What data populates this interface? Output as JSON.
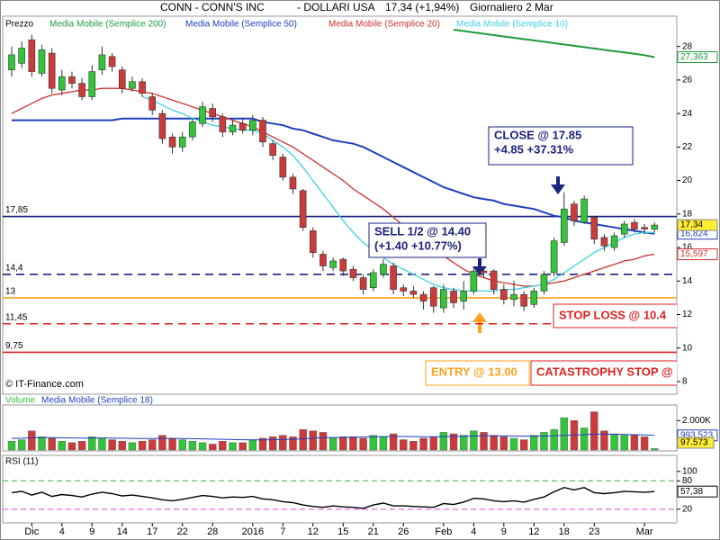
{
  "chart_data": [
    {
      "type": "candlestick",
      "name": "Prezzo",
      "title": "CONN - CONN'S INC",
      "currency": "- DOLLARI USA",
      "last_quote": "17,34 (+1,94%)",
      "period": "Giornaliero  2 Mar",
      "credit": "© IT-Finance.com",
      "categories": [
        null,
        null,
        "Dic",
        null,
        null,
        "4",
        null,
        null,
        "9",
        null,
        null,
        "14",
        null,
        null,
        "17",
        null,
        null,
        "22",
        null,
        null,
        "28",
        null,
        null,
        null,
        "2016",
        null,
        null,
        "7",
        null,
        null,
        "12",
        null,
        null,
        "15",
        null,
        null,
        "21",
        null,
        null,
        "26",
        null,
        null,
        null,
        "Feb",
        null,
        null,
        "4",
        null,
        null,
        "9",
        null,
        null,
        "12",
        null,
        null,
        "18",
        null,
        null,
        "23",
        null,
        null,
        null,
        null,
        "Mar",
        null
      ],
      "open": [
        26.6,
        27.0,
        28.4,
        26.4,
        27.6,
        25.4,
        26.2,
        25.8,
        25.0,
        26.6,
        27.4,
        26.6,
        25.5,
        25.9,
        25.0,
        24.0,
        22.6,
        22.0,
        22.6,
        23.4,
        24.3,
        23.8,
        22.9,
        23.4,
        23.0,
        23.6,
        22.2,
        21.4,
        20.2,
        19.4,
        17.0,
        15.6,
        14.8,
        15.3,
        14.7,
        14.2,
        13.6,
        14.4,
        14.9,
        13.6,
        13.4,
        13.2,
        13.6,
        12.4,
        13.4,
        12.8,
        13.4,
        14.6,
        14.6,
        13.5,
        12.9,
        13.2,
        12.6,
        13.4,
        14.5,
        16.3,
        18.6,
        17.5,
        17.8,
        16.6,
        16.0,
        16.8,
        17.5,
        17.2,
        17.1
      ],
      "high": [
        28.0,
        28.3,
        28.7,
        28.1,
        27.9,
        26.6,
        26.5,
        26.1,
        26.9,
        28.0,
        27.6,
        26.8,
        26.2,
        26.1,
        25.2,
        24.2,
        22.8,
        22.9,
        23.7,
        24.7,
        24.6,
        24.0,
        23.6,
        23.7,
        23.9,
        23.8,
        22.4,
        21.6,
        20.4,
        19.5,
        17.2,
        15.8,
        15.4,
        15.4,
        14.9,
        14.4,
        14.7,
        15.3,
        15.1,
        13.8,
        13.7,
        13.4,
        13.7,
        13.8,
        13.6,
        14.0,
        14.8,
        14.9,
        14.7,
        13.8,
        14.0,
        13.4,
        13.6,
        14.6,
        16.6,
        19.3,
        18.8,
        19.1,
        17.9,
        16.8,
        16.9,
        17.6,
        17.7,
        17.4,
        17.5
      ],
      "low": [
        26.2,
        26.7,
        26.2,
        26.2,
        25.2,
        25.1,
        25.5,
        24.8,
        24.8,
        26.3,
        26.5,
        25.2,
        25.3,
        25.0,
        23.9,
        22.2,
        21.6,
        21.7,
        22.4,
        23.2,
        23.5,
        22.6,
        22.7,
        22.8,
        22.7,
        22.0,
        21.2,
        20.0,
        19.2,
        17.0,
        15.4,
        14.6,
        14.6,
        14.3,
        14.0,
        13.2,
        13.4,
        14.2,
        13.2,
        13.1,
        13.0,
        12.3,
        12.1,
        12.1,
        12.4,
        12.3,
        13.2,
        14.2,
        13.2,
        12.6,
        12.5,
        12.2,
        12.4,
        13.2,
        14.3,
        16.1,
        17.3,
        17.4,
        16.2,
        15.8,
        15.8,
        16.6,
        16.9,
        16.8,
        16.9
      ],
      "close": [
        27.5,
        27.9,
        26.5,
        27.8,
        25.5,
        26.2,
        25.8,
        25.0,
        26.5,
        27.5,
        26.8,
        25.5,
        25.9,
        25.2,
        24.2,
        22.5,
        22.0,
        22.6,
        23.5,
        24.4,
        23.8,
        22.9,
        23.3,
        23.0,
        23.6,
        22.3,
        21.5,
        20.2,
        19.5,
        17.2,
        15.7,
        14.9,
        15.2,
        14.6,
        14.2,
        13.5,
        14.5,
        15.0,
        13.5,
        13.4,
        13.2,
        12.8,
        12.5,
        13.5,
        12.7,
        13.4,
        14.6,
        14.5,
        13.5,
        12.9,
        13.2,
        12.5,
        13.4,
        14.4,
        16.4,
        18.3,
        17.6,
        18.9,
        16.5,
        16.1,
        16.7,
        17.4,
        17.1,
        17.1,
        17.34
      ],
      "close_label": "17,34",
      "up_color": "#33c43a",
      "down_color": "#cc3b3b",
      "series": [
        {
          "name": "Media Mobile (Semplice 200)",
          "color": "#1f9a3c",
          "last_label": "27,363",
          "values": [
            null,
            null,
            null,
            null,
            null,
            null,
            null,
            null,
            null,
            null,
            null,
            null,
            null,
            null,
            null,
            null,
            null,
            null,
            null,
            null,
            null,
            null,
            null,
            null,
            null,
            null,
            null,
            null,
            null,
            null,
            null,
            null,
            null,
            null,
            null,
            null,
            null,
            null,
            null,
            null,
            null,
            null,
            null,
            null,
            29.0,
            28.92,
            28.84,
            28.76,
            28.68,
            28.6,
            28.52,
            28.44,
            28.36,
            28.28,
            28.2,
            28.12,
            28.04,
            27.96,
            27.88,
            27.8,
            27.72,
            27.64,
            27.56,
            27.48,
            27.363
          ]
        },
        {
          "name": "Media Mobile (Semplice 50)",
          "color": "#1f3fbf",
          "last_label": "16,824",
          "values": [
            23.6,
            23.6,
            23.6,
            23.6,
            23.6,
            23.6,
            23.6,
            23.6,
            23.6,
            23.6,
            23.6,
            23.7,
            23.7,
            23.7,
            23.7,
            23.7,
            23.7,
            23.7,
            23.7,
            23.7,
            23.7,
            23.7,
            23.7,
            23.7,
            23.7,
            23.5,
            23.4,
            23.3,
            23.1,
            23.0,
            22.8,
            22.6,
            22.4,
            22.3,
            22.2,
            22.0,
            21.7,
            21.4,
            21.1,
            20.8,
            20.5,
            20.2,
            19.9,
            19.6,
            19.4,
            19.2,
            19.0,
            18.9,
            18.8,
            18.6,
            18.5,
            18.4,
            18.3,
            18.1,
            17.9,
            17.8,
            17.6,
            17.5,
            17.4,
            17.3,
            17.2,
            17.1,
            17.0,
            16.9,
            16.824
          ]
        },
        {
          "name": "Media Mobile (Semplice 20)",
          "color": "#d03030",
          "last_label": "15,597",
          "values": [
            24.0,
            24.3,
            24.6,
            24.9,
            25.1,
            25.2,
            25.3,
            25.4,
            25.4,
            25.5,
            25.5,
            25.5,
            25.4,
            25.3,
            25.2,
            25.0,
            24.8,
            24.6,
            24.4,
            24.2,
            24.0,
            23.8,
            23.6,
            23.4,
            23.2,
            22.9,
            22.6,
            22.3,
            22.0,
            21.6,
            21.2,
            20.8,
            20.4,
            20.0,
            19.5,
            19.1,
            18.7,
            18.3,
            17.8,
            17.3,
            16.8,
            16.3,
            15.9,
            15.5,
            15.1,
            14.7,
            14.4,
            14.2,
            14.0,
            13.9,
            13.8,
            13.7,
            13.7,
            13.8,
            13.9,
            14.0,
            14.2,
            14.4,
            14.6,
            14.8,
            15.0,
            15.2,
            15.3,
            15.5,
            15.597
          ]
        },
        {
          "name": "Media Mobile (Semplice 10)",
          "color": "#3fd0e0",
          "values": [
            null,
            null,
            null,
            null,
            null,
            null,
            null,
            null,
            null,
            null,
            null,
            null,
            null,
            25.0,
            24.8,
            24.5,
            24.2,
            24.0,
            23.7,
            23.5,
            23.3,
            23.2,
            23.1,
            23.0,
            23.0,
            22.8,
            22.4,
            22.0,
            21.5,
            20.8,
            20.0,
            19.2,
            18.4,
            17.6,
            16.9,
            16.3,
            15.8,
            15.4,
            15.0,
            14.7,
            14.4,
            14.1,
            13.8,
            13.6,
            13.5,
            13.4,
            13.4,
            13.4,
            13.4,
            13.5,
            13.5,
            13.6,
            13.7,
            13.8,
            14.1,
            14.5,
            14.9,
            15.3,
            15.7,
            16.0,
            16.3,
            16.6,
            16.8,
            16.9,
            16.9
          ]
        }
      ],
      "levels": [
        {
          "value": 17.85,
          "label": "17,85",
          "color": "#1a237e",
          "dash": false
        },
        {
          "value": 14.4,
          "label": "14,4",
          "color": "#1a237e",
          "dash": true
        },
        {
          "value": 13,
          "label": "13",
          "color": "#ffa21a",
          "dash": false
        },
        {
          "value": 11.45,
          "label": "11,45",
          "color": "#dd2222",
          "dash": true
        },
        {
          "value": 9.75,
          "label": "9,75",
          "color": "#dd2222",
          "dash": false
        }
      ],
      "annotations": [
        {
          "lines": [
            "CLOSE @ 17.85",
            "+4.85 +37.31%"
          ],
          "color": "#1a237e"
        },
        {
          "lines": [
            "SELL 1/2 @ 14.40",
            "(+1.40 +10.77%)"
          ],
          "color": "#1a237e"
        },
        {
          "lines": [
            "STOP LOSS @ 10.4"
          ],
          "color": "#dd2222"
        },
        {
          "lines": [
            "ENTRY @ 13.00"
          ],
          "color": "#ffa21a"
        },
        {
          "lines": [
            "CATASTROPHY STOP @"
          ],
          "color": "#dd2222"
        }
      ],
      "ylim": [
        7.3,
        29.7
      ],
      "yticks": [
        8,
        10,
        12,
        14,
        16,
        18,
        20,
        22,
        24,
        26,
        28
      ]
    },
    {
      "type": "bar",
      "series": [
        {
          "name": "Volume",
          "color": "#33c43a",
          "last_label": "97.573",
          "values": [
            600000,
            700000,
            1300000,
            900000,
            800000,
            600000,
            500000,
            600000,
            900000,
            800000,
            700000,
            600000,
            500000,
            600000,
            700000,
            1000000,
            800000,
            700000,
            600000,
            500000,
            400000,
            600000,
            500000,
            500000,
            700000,
            800000,
            900000,
            1000000,
            900000,
            1400000,
            1300000,
            1200000,
            800000,
            900000,
            900000,
            800000,
            1000000,
            900000,
            1100000,
            700000,
            600000,
            800000,
            900000,
            1200000,
            1100000,
            1000000,
            1300000,
            1200000,
            1000000,
            900000,
            800000,
            700000,
            1000000,
            1200000,
            1400000,
            2200000,
            2000000,
            1500000,
            2600000,
            1300000,
            1100000,
            1000000,
            1000000,
            900000,
            97573
          ]
        },
        {
          "name": "Media Mobile (Semplice 18)",
          "color": "#1f3fbf",
          "last_label": "993.523",
          "values": [
            790000,
            800000,
            830000,
            840000,
            840000,
            830000,
            820000,
            810000,
            820000,
            820000,
            810000,
            800000,
            790000,
            780000,
            780000,
            790000,
            790000,
            780000,
            770000,
            760000,
            740000,
            730000,
            710000,
            700000,
            690000,
            690000,
            700000,
            710000,
            730000,
            760000,
            800000,
            840000,
            850000,
            860000,
            870000,
            880000,
            900000,
            910000,
            920000,
            920000,
            910000,
            900000,
            900000,
            910000,
            920000,
            930000,
            950000,
            960000,
            960000,
            960000,
            950000,
            940000,
            940000,
            950000,
            960000,
            1000000,
            1030000,
            1040000,
            1080000,
            1080000,
            1070000,
            1060000,
            1040000,
            1020000,
            993523
          ]
        }
      ],
      "ylim": [
        0,
        3000000
      ],
      "yticks": [
        {
          "value": 2000000,
          "label": "2.000K"
        }
      ]
    },
    {
      "type": "line",
      "series": [
        {
          "name": "RSI (11)",
          "color": "#000000",
          "last_label": "57,38",
          "values": [
            55,
            58,
            50,
            56,
            47,
            51,
            49,
            46,
            52,
            56,
            53,
            48,
            50,
            47,
            44,
            40,
            38,
            41,
            45,
            49,
            47,
            44,
            46,
            45,
            47,
            42,
            40,
            36,
            34,
            29,
            26,
            24,
            27,
            25,
            24,
            22,
            29,
            33,
            27,
            27,
            26,
            25,
            24,
            32,
            30,
            35,
            43,
            42,
            38,
            36,
            38,
            35,
            41,
            46,
            57,
            66,
            61,
            66,
            55,
            53,
            55,
            58,
            57,
            56,
            57.38
          ]
        }
      ],
      "ylim": [
        -7,
        132
      ],
      "yticks": [
        20,
        80,
        100
      ],
      "tick_colors": [
        "#dd44dd",
        "#33aa44",
        null
      ]
    }
  ]
}
